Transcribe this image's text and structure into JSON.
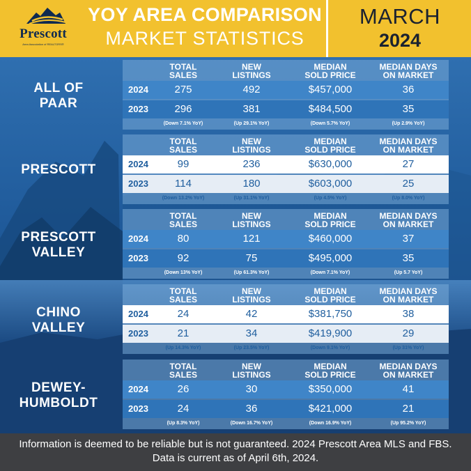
{
  "header": {
    "title_line1": "YOY AREA COMPARISON",
    "title_line2": "MARKET STATISTICS",
    "month": "MARCH",
    "year": "2024",
    "logo_name": "Prescott",
    "logo_sub": "Area Association of REALTORS®",
    "colors": {
      "header_bg": "#f2c12e",
      "footer_bg": "#3e3f42",
      "panel": "#3f85c8"
    }
  },
  "columns": {
    "total_sales": [
      "TOTAL",
      "SALES"
    ],
    "new_listings": [
      "NEW",
      "LISTINGS"
    ],
    "median_price": [
      "MEDIAN",
      "SOLD PRICE"
    ],
    "median_days": [
      "MEDIAN DAYS",
      "ON MARKET"
    ]
  },
  "areas": [
    {
      "name": [
        "ALL OF",
        "PAAR"
      ],
      "rows": [
        {
          "year": "2024",
          "total_sales": "275",
          "new_listings": "492",
          "median_price": "$457,000",
          "median_days": "36"
        },
        {
          "year": "2023",
          "total_sales": "296",
          "new_listings": "381",
          "median_price": "$484,500",
          "median_days": "35"
        }
      ],
      "changes": [
        "(Down 7.1% YoY)",
        "(Up 29.1% YoY)",
        "(Down 5.7% YoY)",
        "(Up 2.9% YoY)"
      ]
    },
    {
      "name": [
        "PRESCOTT"
      ],
      "rows": [
        {
          "year": "2024",
          "total_sales": "99",
          "new_listings": "236",
          "median_price": "$630,000",
          "median_days": "27"
        },
        {
          "year": "2023",
          "total_sales": "114",
          "new_listings": "180",
          "median_price": "$603,000",
          "median_days": "25"
        }
      ],
      "changes": [
        "(Down 13.2% YoY)",
        "(Up 31.1% YoY)",
        "(Up 4.5% YoY)",
        "(Up 8.0% YoY)"
      ]
    },
    {
      "name": [
        "PRESCOTT",
        "VALLEY"
      ],
      "rows": [
        {
          "year": "2024",
          "total_sales": "80",
          "new_listings": "121",
          "median_price": "$460,000",
          "median_days": "37"
        },
        {
          "year": "2023",
          "total_sales": "92",
          "new_listings": "75",
          "median_price": "$495,000",
          "median_days": "35"
        }
      ],
      "changes": [
        "(Down 13% YoY)",
        "(Up 61.3% YoY)",
        "(Down 7.1% YoY)",
        "(Up 5.7 YoY)"
      ]
    },
    {
      "name": [
        "CHINO",
        "VALLEY"
      ],
      "rows": [
        {
          "year": "2024",
          "total_sales": "24",
          "new_listings": "42",
          "median_price": "$381,750",
          "median_days": "38"
        },
        {
          "year": "2023",
          "total_sales": "21",
          "new_listings": "34",
          "median_price": "$419,900",
          "median_days": "29"
        }
      ],
      "changes": [
        "(Up 14.3% YoY)",
        "(Up 23.5% YoY)",
        "(Down 9.1% YoY)",
        "(Up 31% YoY)"
      ]
    },
    {
      "name": [
        "DEWEY-",
        "HUMBOLDT"
      ],
      "rows": [
        {
          "year": "2024",
          "total_sales": "26",
          "new_listings": "30",
          "median_price": "$350,000",
          "median_days": "41"
        },
        {
          "year": "2023",
          "total_sales": "24",
          "new_listings": "36",
          "median_price": "$421,000",
          "median_days": "21"
        }
      ],
      "changes": [
        "(Up 8.3% YoY)",
        "(Down 16.7% YoY)",
        "(Down 16.9% YoY)",
        "(Up 95.2% YoY)"
      ]
    }
  ],
  "footer": {
    "note": "Information is deemed to be reliable but is not guaranteed. 2024 Prescott Area MLS and FBS. Data is current as of April 6th, 2024."
  }
}
